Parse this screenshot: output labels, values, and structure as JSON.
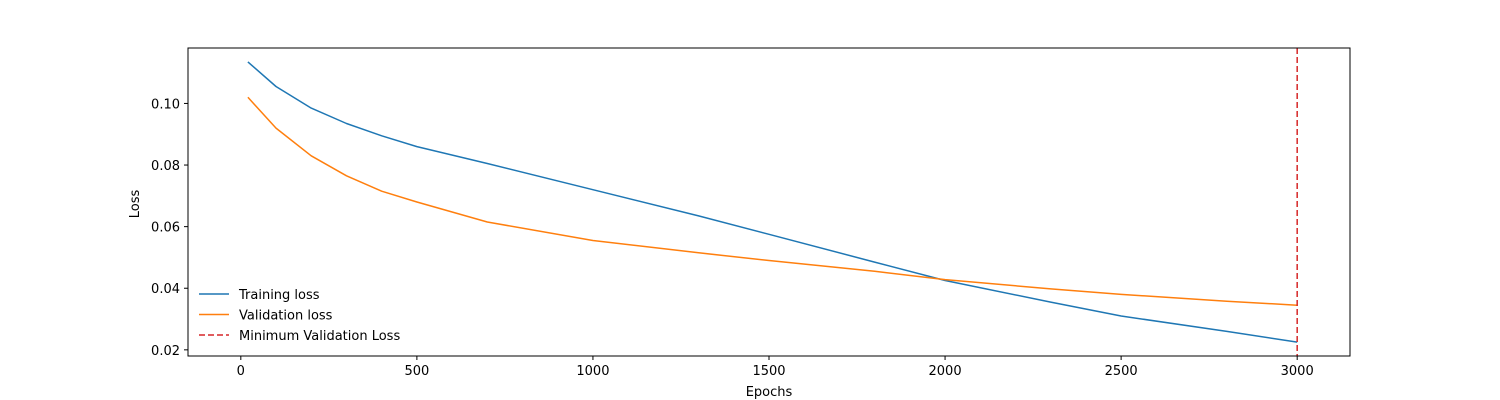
{
  "chart_data": {
    "type": "line",
    "title": "",
    "xlabel": "Epochs",
    "ylabel": "Loss",
    "xlim": [
      -150,
      3150
    ],
    "ylim": [
      0.018,
      0.118
    ],
    "xticks": [
      0,
      500,
      1000,
      1500,
      2000,
      2500,
      3000
    ],
    "yticks": [
      0.02,
      0.04,
      0.06,
      0.08,
      0.1
    ],
    "xtick_labels": [
      "0",
      "500",
      "1000",
      "1500",
      "2000",
      "2500",
      "3000"
    ],
    "ytick_labels": [
      "0.02",
      "0.04",
      "0.06",
      "0.08",
      "0.10"
    ],
    "grid": false,
    "legend_position": "lower-left",
    "series": [
      {
        "name": "Training loss",
        "color": "#1f77b4",
        "style": "solid",
        "x": [
          20,
          100,
          200,
          300,
          400,
          500,
          700,
          1000,
          1300,
          1500,
          1800,
          2000,
          2300,
          2500,
          2800,
          3000
        ],
        "y": [
          0.1135,
          0.1055,
          0.0985,
          0.0935,
          0.0895,
          0.086,
          0.0805,
          0.072,
          0.0635,
          0.0575,
          0.0485,
          0.0425,
          0.0355,
          0.031,
          0.026,
          0.0225
        ]
      },
      {
        "name": "Validation loss",
        "color": "#ff7f0e",
        "style": "solid",
        "x": [
          20,
          100,
          200,
          300,
          400,
          500,
          700,
          1000,
          1300,
          1500,
          1800,
          2000,
          2300,
          2500,
          2800,
          3000
        ],
        "y": [
          0.102,
          0.092,
          0.083,
          0.0765,
          0.0715,
          0.068,
          0.0615,
          0.0555,
          0.0515,
          0.049,
          0.0455,
          0.0428,
          0.0398,
          0.038,
          0.0358,
          0.0345
        ]
      }
    ],
    "vlines": [
      {
        "name": "Minimum Validation Loss",
        "x": 3000,
        "color": "#d62728",
        "style": "dashed"
      }
    ]
  }
}
